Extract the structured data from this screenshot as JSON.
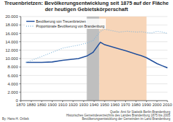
{
  "chart_data": {
    "type": "line",
    "title": "Treuenbrietzen: Bevölkerungsentwicklung seit 1875 auf der Fläche der heutigen Gebietskörperschaft",
    "x": [
      1875,
      1890,
      1900,
      1910,
      1925,
      1933,
      1939,
      1946,
      1950,
      1964,
      1971,
      1981,
      1985,
      1990,
      1995,
      2000,
      2005,
      2010
    ],
    "series": [
      {
        "name": "Bevölkerung von Treuenbrietzen",
        "color": "#1f4e9c",
        "line_style": "solid",
        "marker": "none",
        "values": [
          9100,
          9100,
          9200,
          9600,
          10000,
          10600,
          11500,
          13900,
          13300,
          12300,
          11800,
          11000,
          10700,
          10200,
          9500,
          8800,
          8300,
          7800
        ]
      },
      {
        "name": "Proportionale Bevölkerung von Brandenburg",
        "color": "#7eb3d9",
        "line_style": "dotted",
        "marker": "none",
        "values": [
          9100,
          10500,
          11500,
          12500,
          13200,
          13700,
          14300,
          16500,
          17000,
          16300,
          16500,
          16300,
          16400,
          16200,
          16100,
          16500,
          16300,
          16000
        ]
      }
    ],
    "periods": [
      {
        "from": 1933,
        "to": 1945,
        "color": "#bfbfbf"
      },
      {
        "from": 1945,
        "to": 1990,
        "color": "#f7d5b8"
      }
    ],
    "xlim": [
      1870,
      2010
    ],
    "xticks": [
      1870,
      1880,
      1890,
      1900,
      1910,
      1920,
      1930,
      1940,
      1950,
      1960,
      1970,
      1980,
      1990,
      2000,
      2010
    ],
    "ylim": [
      0,
      20000
    ],
    "yticks": [
      0,
      {
        "value": 2000,
        "label": "2.000"
      },
      {
        "value": 4000,
        "label": "4.000"
      },
      {
        "value": 6000,
        "label": "6.000"
      },
      {
        "value": 8000,
        "label": "8.000"
      },
      {
        "value": 10000,
        "label": "10.000"
      },
      {
        "value": 12000,
        "label": "12.000"
      },
      {
        "value": 14000,
        "label": "14.000"
      },
      {
        "value": 16000,
        "label": "16.000"
      },
      {
        "value": 18000,
        "label": "18.000"
      },
      {
        "value": 20000,
        "label": "20.000"
      }
    ],
    "grid": true,
    "legend": "top-left",
    "author": "By: Hans-H. Ortlieb",
    "source": [
      "Quelle: Amt für Statistik Berlin-Brandenburg",
      "Historisches Gemeindeverzeichnis des Landes Brandenburg 1875 bis 2005",
      "Bevölkerungsentwicklung der Gemeinden im Land Brandenburg"
    ]
  }
}
